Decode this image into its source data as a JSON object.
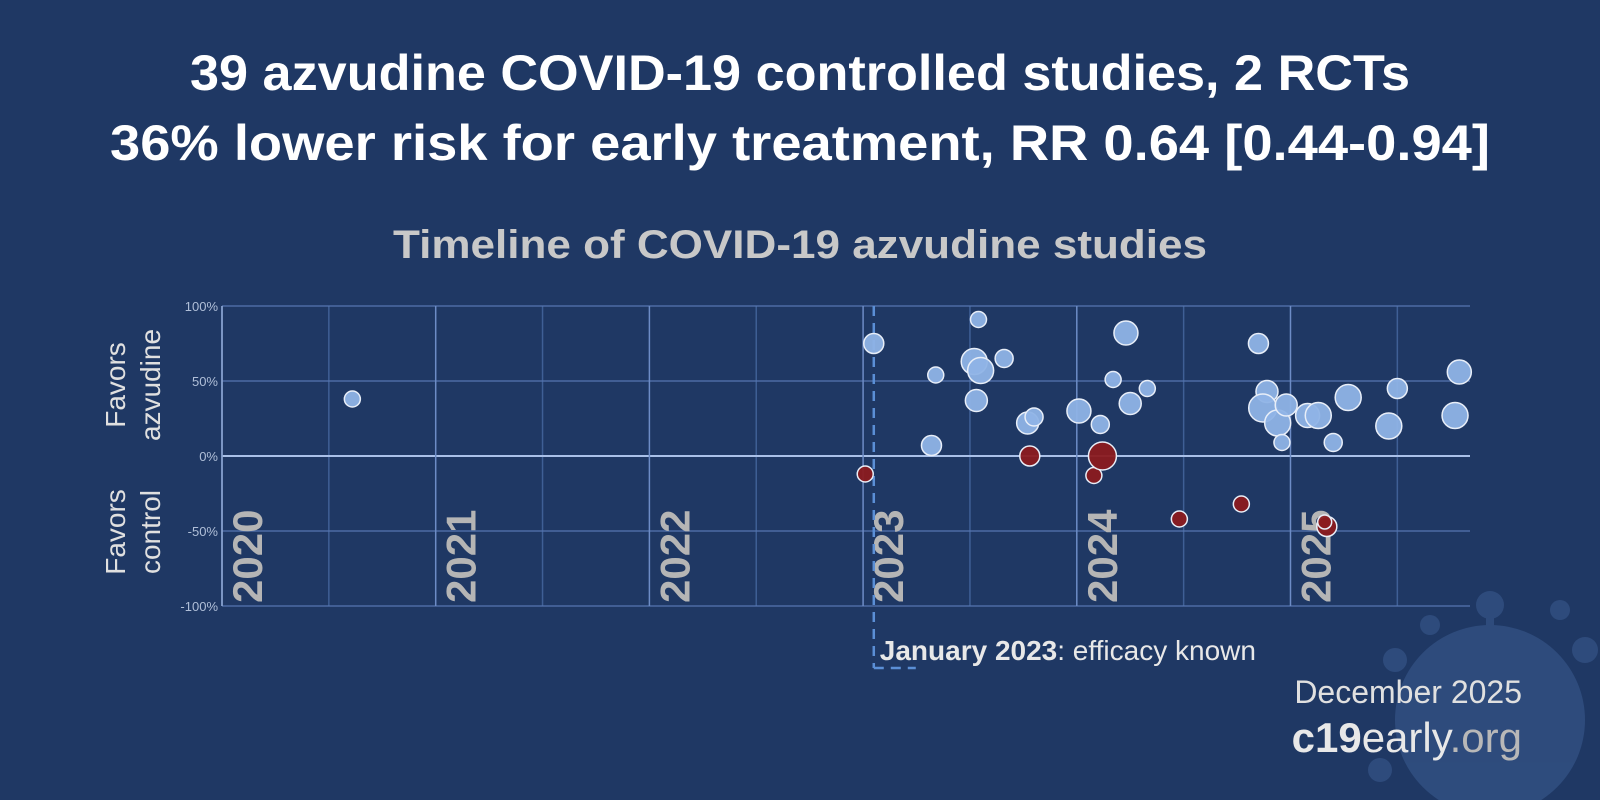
{
  "header": {
    "title_lines": [
      "39 azvudine COVID-19 controlled studies, 2 RCTs",
      "36% lower risk for early treatment, RR 0.64 [0.44-0.94]"
    ]
  },
  "chart_data": {
    "type": "scatter",
    "title": "Timeline of COVID-19 azvudine studies",
    "y_label_top": [
      "Favors",
      "azvudine"
    ],
    "y_label_bottom": [
      "Favors",
      "control"
    ],
    "xlim": [
      2020,
      2025.84
    ],
    "xticks": [
      2020,
      2021,
      2022,
      2023,
      2024,
      2025
    ],
    "xticks_minor": [
      2020.5,
      2021.5,
      2022.5,
      2023.5,
      2024.5,
      2025.5
    ],
    "ylim": [
      -100,
      100
    ],
    "yticks": [
      {
        "value": -100,
        "label": "-100%"
      },
      {
        "value": -50,
        "label": "-50%"
      },
      {
        "value": 0,
        "label": "0%"
      },
      {
        "value": 50,
        "label": "50%"
      },
      {
        "value": 100,
        "label": "100%"
      }
    ],
    "grid": true,
    "series": [
      {
        "color": "#8fb3e6",
        "x": [
          2020.61,
          2023.05,
          2023.32,
          2023.34,
          2023.54,
          2023.52,
          2023.55,
          2023.53,
          2023.66,
          2023.77,
          2023.8,
          2024.01,
          2024.11,
          2024.23,
          2024.17,
          2024.25,
          2024.33,
          2024.85,
          2024.89,
          2024.87,
          2024.94,
          2024.98,
          2024.96,
          2025.08,
          2025.13,
          2025.2,
          2025.27,
          2025.46,
          2025.5,
          2025.77,
          2025.79
        ],
        "values": [
          38,
          75,
          7,
          54,
          91,
          63,
          57,
          37,
          65,
          22,
          26,
          30,
          21,
          82,
          51,
          35,
          45,
          75,
          43,
          32,
          22,
          34,
          9,
          27,
          27,
          9,
          39,
          20,
          45,
          27,
          56
        ],
        "sizes": [
          8,
          10,
          10,
          8,
          8,
          13,
          13,
          11,
          9,
          11,
          9,
          12,
          9,
          12,
          8,
          11,
          8,
          10,
          11,
          14,
          13,
          11,
          8,
          12,
          13,
          9,
          13,
          13,
          10,
          13,
          12
        ]
      },
      {
        "color": "#8b1a1f",
        "x": [
          2023.01,
          2023.78,
          2024.08,
          2024.12,
          2024.48,
          2024.77,
          2025.17,
          2025.16
        ],
        "values": [
          -12,
          0,
          -13,
          0,
          -42,
          -32,
          -47,
          -44
        ],
        "sizes": [
          8,
          10,
          8,
          14,
          8,
          8,
          10,
          7
        ]
      }
    ],
    "annotation": {
      "x": 2023.05,
      "date": "January 2023",
      "text": ": efficacy known"
    }
  },
  "footer": {
    "date": "December 2025",
    "site_bold": "c19",
    "site": "early",
    "site_suffix": ".org"
  }
}
